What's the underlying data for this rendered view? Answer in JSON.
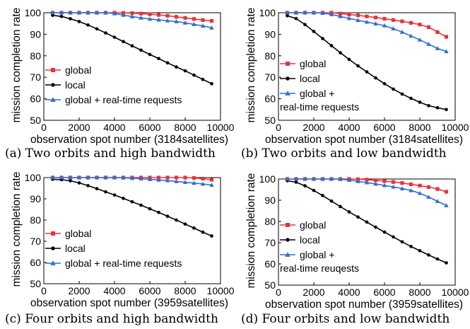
{
  "chart_data": [
    {
      "type": "line",
      "caption": "(a)  Two orbits and high bandwidth",
      "xlabel": "observation spot number (3184satellites)",
      "ylabel": "mission completion rate",
      "xlim": [
        0,
        10000
      ],
      "ylim": [
        50,
        100
      ],
      "xticks": [
        "0",
        "2000",
        "4000",
        "6000",
        "8000",
        "10000"
      ],
      "yticks": [
        "50",
        "60",
        "70",
        "80",
        "90",
        "100"
      ],
      "legend": "bottom-left",
      "legend_labels": [
        "global",
        "local",
        "global + real-time requests"
      ],
      "series": [
        {
          "name": "global",
          "color": "#e8323c",
          "marker": "square",
          "x": [
            500,
            1000,
            1500,
            2000,
            2500,
            3000,
            3500,
            4000,
            4500,
            5000,
            5500,
            6000,
            6500,
            7000,
            7500,
            8000,
            8500,
            9000,
            9500
          ],
          "y": [
            100,
            100,
            100,
            100,
            100,
            100,
            100,
            100,
            99.9,
            99.8,
            99.6,
            99.3,
            99.0,
            98.6,
            98.1,
            97.6,
            97.1,
            96.6,
            96.2
          ]
        },
        {
          "name": "local",
          "color": "#000000",
          "marker": "circle",
          "x": [
            500,
            1000,
            1500,
            2000,
            2500,
            3000,
            3500,
            4000,
            4500,
            5000,
            5500,
            6000,
            6500,
            7000,
            7500,
            8000,
            8500,
            9000,
            9500
          ],
          "y": [
            98.8,
            98.3,
            97.2,
            95.9,
            94.3,
            92.5,
            90.6,
            88.6,
            86.6,
            84.6,
            82.6,
            80.6,
            78.7,
            76.7,
            74.8,
            73.0,
            71.0,
            69.0,
            67.0
          ]
        },
        {
          "name": "global + real-time requests",
          "color": "#2f6fd0",
          "marker": "triangle",
          "x": [
            500,
            1000,
            1500,
            2000,
            2500,
            3000,
            3500,
            4000,
            4500,
            5000,
            5500,
            6000,
            6500,
            7000,
            7500,
            8000,
            8500,
            9000,
            9500
          ],
          "y": [
            100,
            100,
            100,
            100,
            100,
            100,
            100,
            99.6,
            98.9,
            98.2,
            97.6,
            97.1,
            96.7,
            96.3,
            95.9,
            95.3,
            94.6,
            93.9,
            93.0
          ]
        }
      ]
    },
    {
      "type": "line",
      "caption": "(b)  Two orbits and low bandwidth",
      "xlabel": "observation spot number (3184satellites)",
      "ylabel": "mission completion rate",
      "xlim": [
        0,
        10000
      ],
      "ylim": [
        50,
        100
      ],
      "xticks": [
        "0",
        "2000",
        "4000",
        "6000",
        "8000",
        "10000"
      ],
      "yticks": [
        "50",
        "60",
        "70",
        "80",
        "90",
        "100"
      ],
      "legend": "bottom-left",
      "legend_labels": [
        "global",
        "local",
        "global +",
        "real-time requests"
      ],
      "series": [
        {
          "name": "global",
          "color": "#e8323c",
          "marker": "square",
          "x": [
            500,
            1000,
            1500,
            2000,
            2500,
            3000,
            3500,
            4000,
            4500,
            5000,
            5500,
            6000,
            6500,
            7000,
            7500,
            8000,
            8500,
            9000,
            9500
          ],
          "y": [
            100,
            100,
            100,
            100,
            100,
            100,
            99.6,
            99.2,
            98.8,
            98.3,
            97.8,
            97.2,
            96.6,
            96.0,
            95.3,
            94.5,
            93.3,
            91.0,
            88.8
          ]
        },
        {
          "name": "local",
          "color": "#000000",
          "marker": "circle",
          "x": [
            500,
            1000,
            1500,
            2000,
            2500,
            3000,
            3500,
            4000,
            4500,
            5000,
            5500,
            6000,
            6500,
            7000,
            7500,
            8000,
            8500,
            9000,
            9500
          ],
          "y": [
            98.6,
            97.3,
            94.5,
            91.3,
            88.0,
            84.7,
            81.4,
            78.3,
            75.3,
            72.5,
            69.7,
            67.0,
            64.5,
            62.2,
            60.2,
            58.4,
            56.8,
            55.8,
            55.0
          ]
        },
        {
          "name": "global + real-time requests",
          "color": "#2f6fd0",
          "marker": "triangle",
          "x": [
            500,
            1000,
            1500,
            2000,
            2500,
            3000,
            3500,
            4000,
            4500,
            5000,
            5500,
            6000,
            6500,
            7000,
            7500,
            8000,
            8500,
            9000,
            9500
          ],
          "y": [
            100,
            100,
            100,
            100,
            99.8,
            99.2,
            98.3,
            97.4,
            96.5,
            95.7,
            94.9,
            94.0,
            92.6,
            91.0,
            89.2,
            87.4,
            85.4,
            83.4,
            82.0
          ]
        }
      ]
    },
    {
      "type": "line",
      "caption": "(c)  Four orbits and high bandwidth",
      "xlabel": "observation spot number (3959satellites)",
      "ylabel": "mission completion rate",
      "xlim": [
        0,
        10000
      ],
      "ylim": [
        50,
        100
      ],
      "xticks": [
        "0",
        "2000",
        "4000",
        "6000",
        "8000",
        "10000"
      ],
      "yticks": [
        "50",
        "60",
        "70",
        "80",
        "90",
        "100"
      ],
      "legend": "bottom-left",
      "legend_labels": [
        "global",
        "local",
        "global + real-time requests"
      ],
      "series": [
        {
          "name": "global",
          "color": "#e8323c",
          "marker": "square",
          "x": [
            500,
            1000,
            1500,
            2000,
            2500,
            3000,
            3500,
            4000,
            4500,
            5000,
            5500,
            6000,
            6500,
            7000,
            7500,
            8000,
            8500,
            9000,
            9500
          ],
          "y": [
            100,
            100,
            100,
            100,
            100,
            100,
            100,
            100,
            100,
            100,
            100,
            100,
            100,
            100,
            100,
            100,
            99.8,
            99.5,
            99.0
          ]
        },
        {
          "name": "local",
          "color": "#000000",
          "marker": "circle",
          "x": [
            500,
            1000,
            1500,
            2000,
            2500,
            3000,
            3500,
            4000,
            4500,
            5000,
            5500,
            6000,
            6500,
            7000,
            7500,
            8000,
            8500,
            9000,
            9500
          ],
          "y": [
            99.2,
            99.0,
            98.5,
            97.5,
            96.2,
            94.8,
            93.3,
            91.8,
            90.2,
            88.6,
            87.0,
            85.3,
            83.6,
            81.8,
            80.0,
            78.1,
            76.2,
            74.3,
            72.5
          ]
        },
        {
          "name": "global + real-time requests",
          "color": "#2f6fd0",
          "marker": "triangle",
          "x": [
            500,
            1000,
            1500,
            2000,
            2500,
            3000,
            3500,
            4000,
            4500,
            5000,
            5500,
            6000,
            6500,
            7000,
            7500,
            8000,
            8500,
            9000,
            9500
          ],
          "y": [
            100,
            100,
            100,
            100,
            100,
            100,
            100,
            100,
            99.9,
            99.7,
            99.5,
            99.2,
            98.9,
            98.6,
            98.2,
            97.8,
            97.4,
            97.0,
            96.5
          ]
        }
      ]
    },
    {
      "type": "line",
      "caption": "(d)  Four orbits and low bandwidth",
      "xlabel": "observation spot number (3959satellites)",
      "ylabel": "mission completion rate",
      "xlim": [
        0,
        10000
      ],
      "ylim": [
        50,
        100
      ],
      "xticks": [
        "0",
        "2000",
        "4000",
        "6000",
        "8000",
        "10000"
      ],
      "yticks": [
        "50",
        "60",
        "70",
        "80",
        "90",
        "100"
      ],
      "legend": "bottom-left",
      "legend_labels": [
        "global",
        "local",
        "global +",
        "real-time reuqests"
      ],
      "series": [
        {
          "name": "global",
          "color": "#e8323c",
          "marker": "square",
          "x": [
            500,
            1000,
            1500,
            2000,
            2500,
            3000,
            3500,
            4000,
            4500,
            5000,
            5500,
            6000,
            6500,
            7000,
            7500,
            8000,
            8500,
            9000,
            9500
          ],
          "y": [
            100,
            100,
            100,
            100,
            100,
            100,
            100,
            100,
            99.9,
            99.7,
            99.4,
            99.0,
            98.6,
            98.1,
            97.5,
            96.9,
            96.2,
            95.3,
            94.0
          ]
        },
        {
          "name": "local",
          "color": "#000000",
          "marker": "circle",
          "x": [
            500,
            1000,
            1500,
            2000,
            2500,
            3000,
            3500,
            4000,
            4500,
            5000,
            5500,
            6000,
            6500,
            7000,
            7500,
            8000,
            8500,
            9000,
            9500
          ],
          "y": [
            99.2,
            98.5,
            96.8,
            94.6,
            92.2,
            89.6,
            87.0,
            84.5,
            82.1,
            79.7,
            77.3,
            75.0,
            72.7,
            70.4,
            68.2,
            66.2,
            64.2,
            62.3,
            60.5
          ]
        },
        {
          "name": "global + real-time requests",
          "color": "#2f6fd0",
          "marker": "triangle",
          "x": [
            500,
            1000,
            1500,
            2000,
            2500,
            3000,
            3500,
            4000,
            4500,
            5000,
            5500,
            6000,
            6500,
            7000,
            7500,
            8000,
            8500,
            9000,
            9500
          ],
          "y": [
            100,
            100,
            100,
            100,
            100,
            100,
            99.9,
            99.5,
            98.9,
            98.3,
            97.7,
            97.0,
            96.3,
            95.5,
            94.6,
            93.3,
            91.5,
            89.5,
            87.5
          ]
        }
      ]
    }
  ]
}
